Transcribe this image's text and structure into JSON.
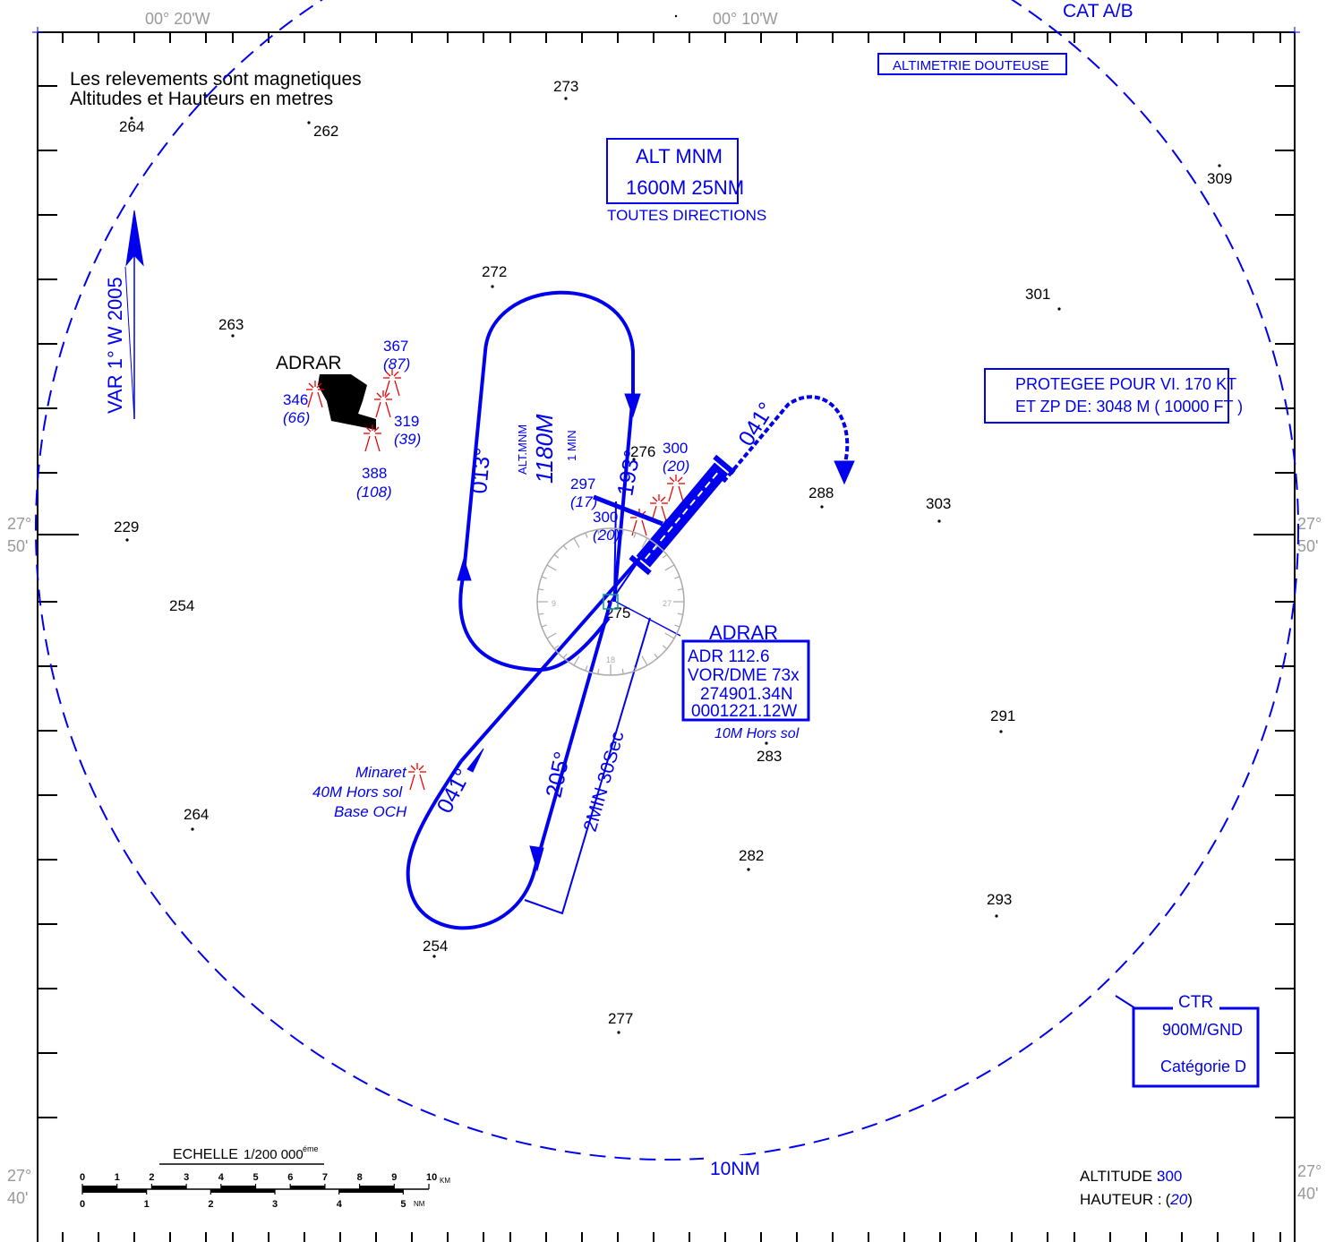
{
  "header": {
    "lon_left": "00° 20'W",
    "lon_right": "00° 10'W",
    "category": "CAT A/B"
  },
  "notes": {
    "line1": "Les relevements sont magnetiques",
    "line2": "Altitudes et Hauteurs en metres",
    "altimetry": "ALTIMETRIE DOUTEUSE"
  },
  "msa": {
    "title": "ALT MNM",
    "value": "1600M  25NM",
    "sub": "TOUTES DIRECTIONS"
  },
  "protected": {
    "line1": "PROTEGEE POUR VI. 170  KT",
    "line2": "ET ZP DE: 3048 M ( 10000 FT )"
  },
  "variation": "VAR 1° W 2005",
  "town": "ADRAR",
  "lat_labels": {
    "deg": "27°",
    "min50": "50'",
    "min40": "40'"
  },
  "spot_heights": [
    "264",
    "262",
    "273",
    "309",
    "272",
    "301",
    "263",
    "229",
    "254",
    "276",
    "288",
    "303",
    "275",
    "291",
    "283",
    "264",
    "282",
    "293",
    "254",
    "277"
  ],
  "obstacles": [
    {
      "alt": "367",
      "hgt": "(87)"
    },
    {
      "alt": "346",
      "hgt": "(66)"
    },
    {
      "alt": "319",
      "hgt": "(39)"
    },
    {
      "alt": "388",
      "hgt": "(108)"
    },
    {
      "alt": "300",
      "hgt": "(20)"
    },
    {
      "alt": "297",
      "hgt": "(17)"
    },
    {
      "alt": "300",
      "hgt": "(20)"
    }
  ],
  "holding": {
    "inbound": "013°",
    "outbound": "193°",
    "alt_label": "ALT.MNM",
    "alt_value": "1180M",
    "time": "1 MIN"
  },
  "procedure": {
    "track_a": "041°",
    "track_b": "041°",
    "track_c": "205°",
    "timing": "2MIN 30Sec"
  },
  "minaret": {
    "line1": "Minaret",
    "line2": "40M Hors sol",
    "line3": "Base OCH"
  },
  "vor": {
    "name": "ADRAR",
    "freq": "ADR 112.6",
    "type": "VOR/DME 73x",
    "lat": "274901.34N",
    "lon": "0001221.12W",
    "height": "10M Hors sol"
  },
  "rose_labels": [
    "9",
    "27",
    "18"
  ],
  "ring_label": "10NM",
  "ctr": {
    "title": "CTR",
    "limits": "900M/GND",
    "class": "Catégorie D"
  },
  "scale": {
    "title": "ECHELLE",
    "ratio": "1/200 000",
    "sup": "éme",
    "km": [
      "0",
      "1",
      "2",
      "3",
      "4",
      "5",
      "6",
      "7",
      "8",
      "9",
      "10"
    ],
    "km_unit": "KM",
    "nm": [
      "0",
      "1",
      "2",
      "3",
      "4",
      "5"
    ],
    "nm_unit": "NM"
  },
  "legend": {
    "alt_label": "ALTITUDE :",
    "alt_value": "300",
    "hgt_label": "HAUTEUR :",
    "hgt_value": "20"
  },
  "colors": {
    "procedure": "#0000ee",
    "obstacle": "#ee0000",
    "terrain": "#000000",
    "grid_label": "#999999"
  }
}
